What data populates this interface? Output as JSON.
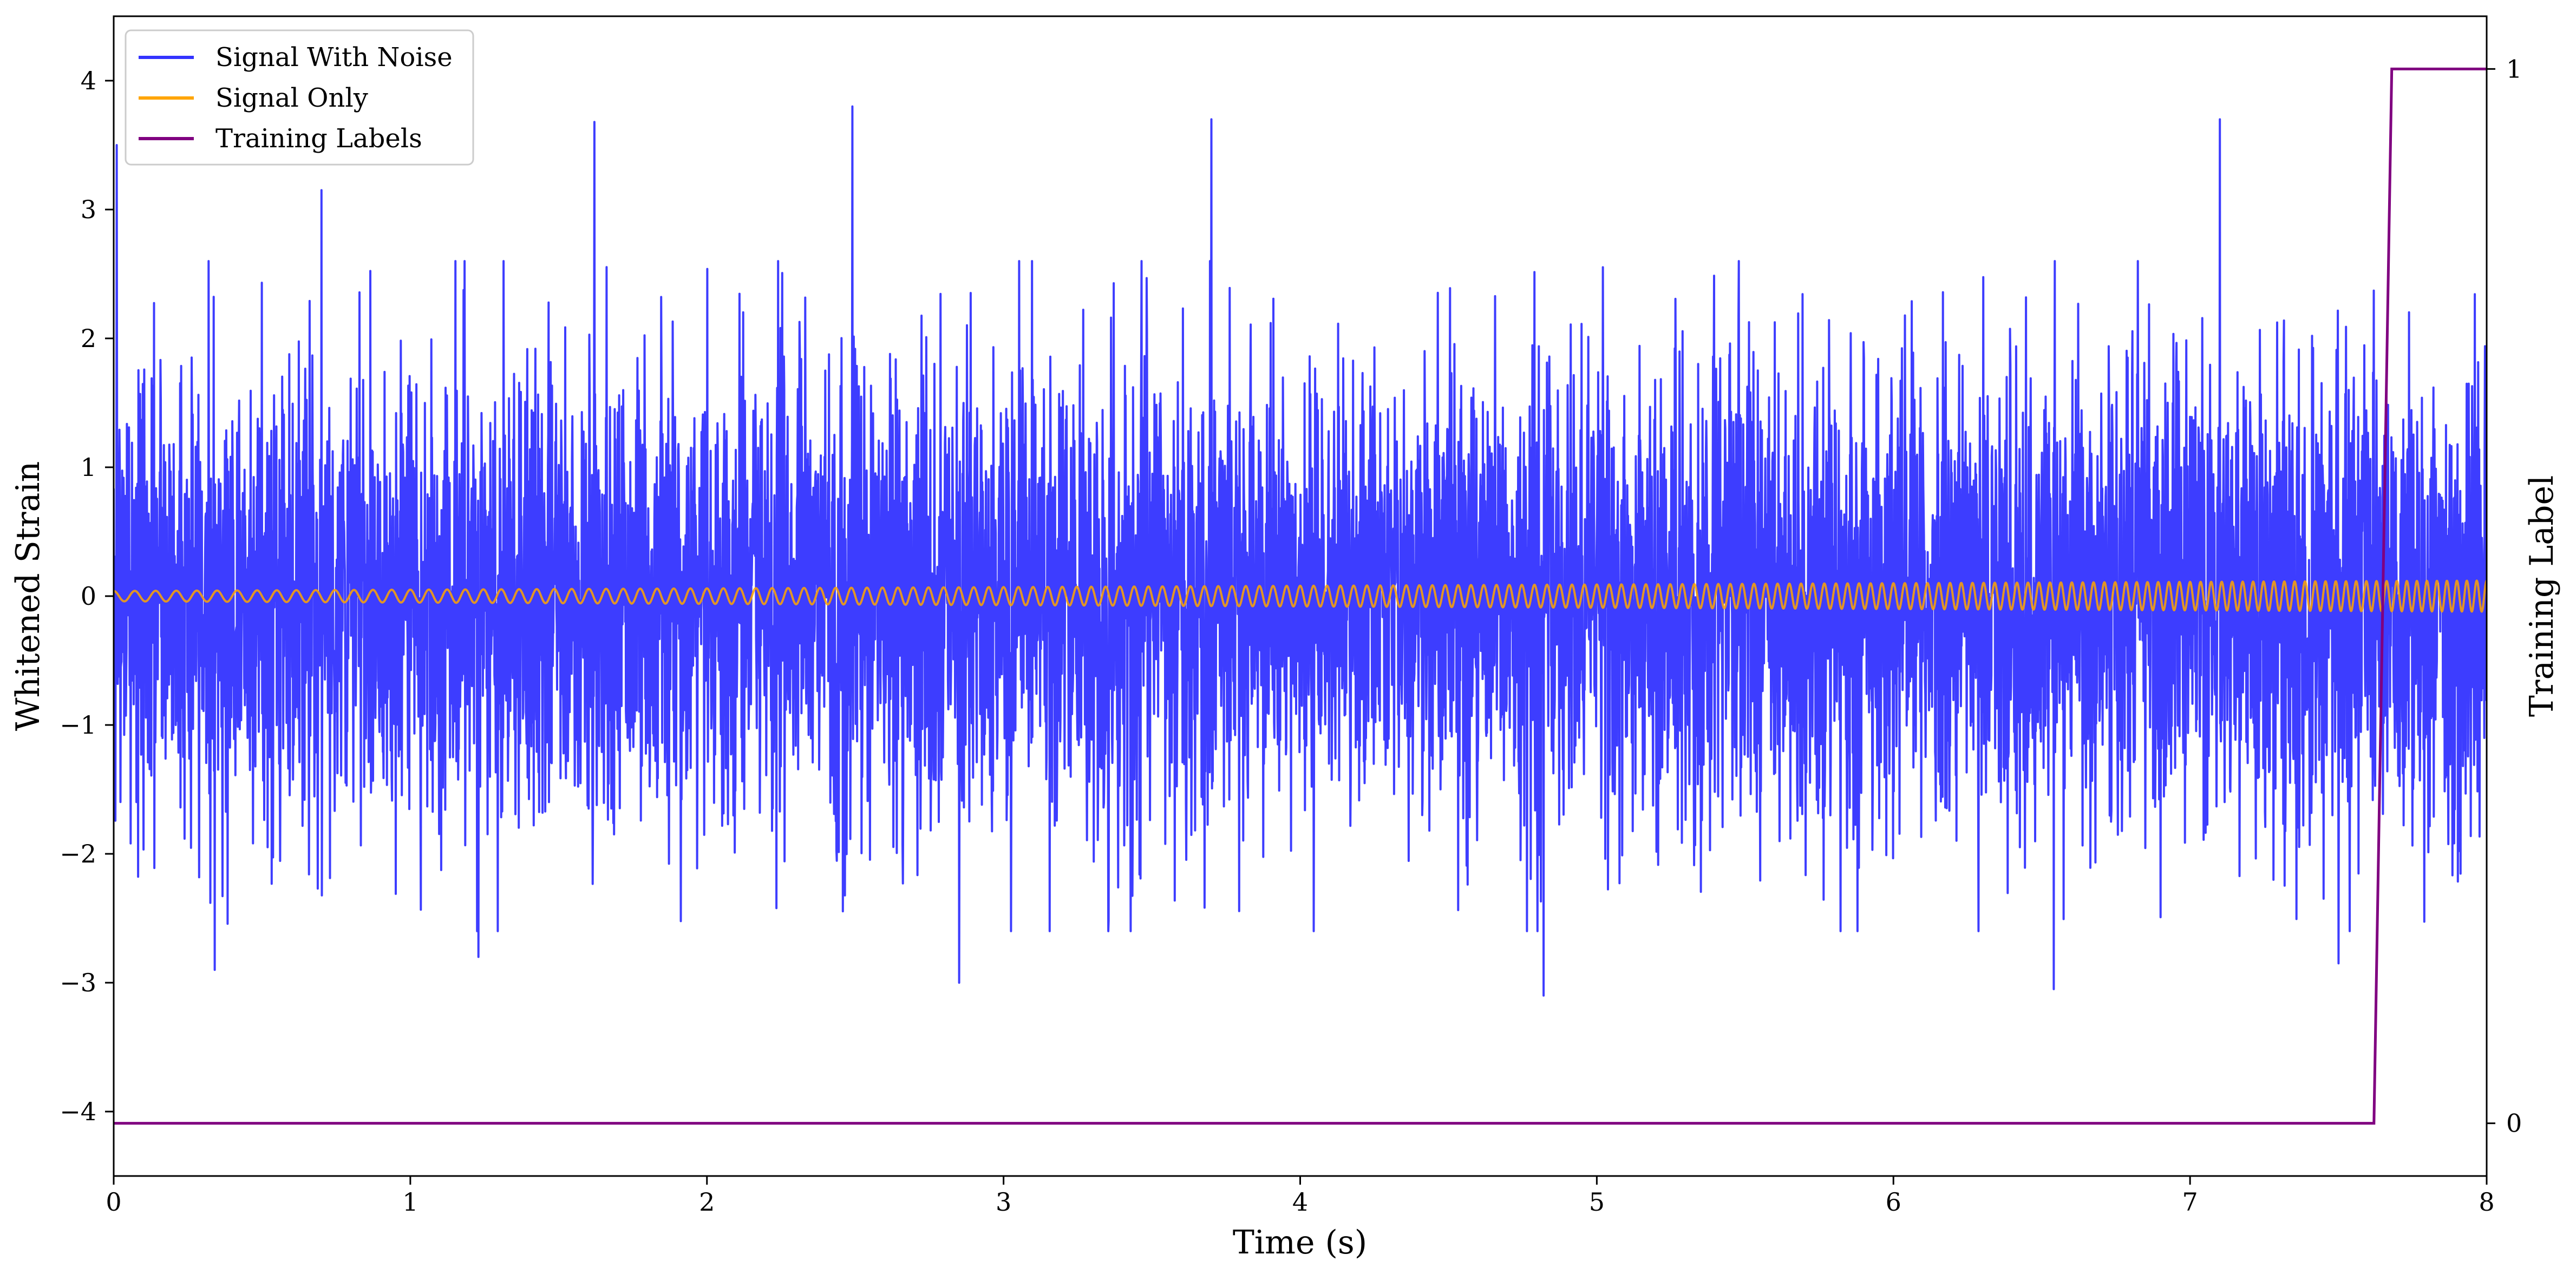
{
  "chart_data": {
    "type": "line",
    "title": "",
    "xlabel": "Time (s)",
    "ylabel": "Whitened Strain",
    "y2label": "Training Label",
    "xlim": [
      0,
      8
    ],
    "ylim": [
      -4.5,
      4.5
    ],
    "y2lim": [
      -0.05,
      1.05
    ],
    "grid": false,
    "legend_location": "top-left",
    "x_ticks": [
      {
        "value": 0,
        "label": "0"
      },
      {
        "value": 1,
        "label": "1"
      },
      {
        "value": 2,
        "label": "2"
      },
      {
        "value": 3,
        "label": "3"
      },
      {
        "value": 4,
        "label": "4"
      },
      {
        "value": 5,
        "label": "5"
      },
      {
        "value": 6,
        "label": "6"
      },
      {
        "value": 7,
        "label": "7"
      },
      {
        "value": 8,
        "label": "8"
      }
    ],
    "y_ticks": [
      {
        "value": -4,
        "label": "−4"
      },
      {
        "value": -3,
        "label": "−3"
      },
      {
        "value": -2,
        "label": "−2"
      },
      {
        "value": -1,
        "label": "−1"
      },
      {
        "value": 0,
        "label": "0"
      },
      {
        "value": 1,
        "label": "1"
      },
      {
        "value": 2,
        "label": "2"
      },
      {
        "value": 3,
        "label": "3"
      },
      {
        "value": 4,
        "label": "4"
      }
    ],
    "y2_ticks": [
      {
        "value": 0,
        "label": "0"
      },
      {
        "value": 1,
        "label": "1"
      }
    ],
    "series": [
      {
        "name": "Signal With Noise",
        "color": "#3333ff",
        "axis": "left",
        "description_stats": {
          "mean": 0,
          "std": 0.9,
          "min": -3.1,
          "max": 3.8,
          "duration_s": 8
        },
        "peaks": [
          {
            "x": 0.01,
            "y": 3.5
          },
          {
            "x": 0.34,
            "y": -2.9
          },
          {
            "x": 0.7,
            "y": 3.15
          },
          {
            "x": 1.23,
            "y": -2.8
          },
          {
            "x": 1.62,
            "y": 3.68
          },
          {
            "x": 2.49,
            "y": 3.8
          },
          {
            "x": 2.85,
            "y": -3.0
          },
          {
            "x": 3.7,
            "y": 3.7
          },
          {
            "x": 4.82,
            "y": -3.1
          },
          {
            "x": 6.54,
            "y": -3.05
          },
          {
            "x": 7.1,
            "y": 3.7
          },
          {
            "x": 7.5,
            "y": -2.85
          }
        ]
      },
      {
        "name": "Signal Only",
        "color": "#ffa500",
        "axis": "left",
        "chirp": {
          "amplitude_start": 0.04,
          "amplitude_end": 0.12,
          "frequency_start_hz": 14,
          "frequency_end_hz": 30
        }
      },
      {
        "name": "Training Labels",
        "color": "#800080",
        "axis": "right",
        "points": [
          [
            0,
            0
          ],
          [
            7.62,
            0
          ],
          [
            7.68,
            1
          ],
          [
            8,
            1
          ]
        ]
      }
    ]
  }
}
